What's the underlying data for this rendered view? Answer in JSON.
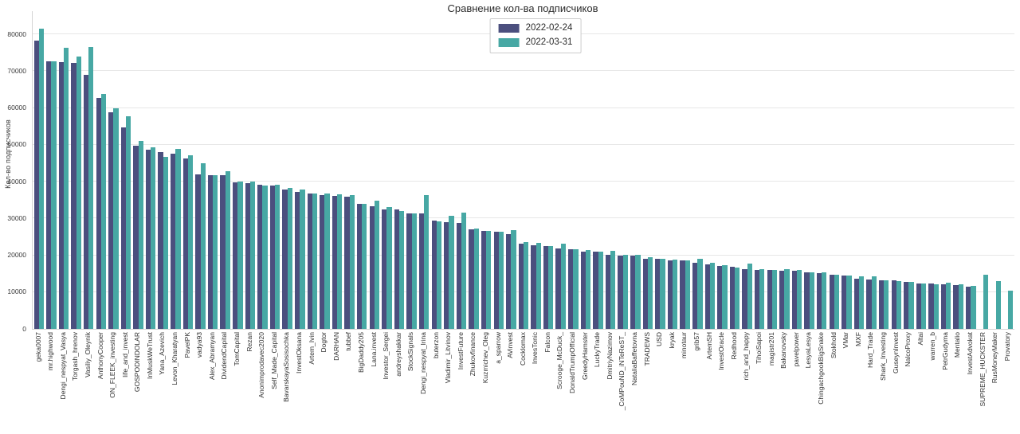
{
  "chart_data": {
    "type": "bar",
    "title": "Сравнение кол-ва подписчиков",
    "xlabel": "",
    "ylabel": "Кол-во подписчиков",
    "ylim": [
      0,
      85000
    ],
    "yticks": [
      0,
      10000,
      20000,
      30000,
      40000,
      50000,
      60000,
      70000,
      80000
    ],
    "grid": "horizontal",
    "legend_position": "top-center",
    "categories": [
      "geka0007",
      "mr.highwood",
      "Dengi_nespyat_Vasya",
      "Torgash_hrenov",
      "Vasiliy_Oleynik",
      "AnthonyCooper",
      "ON_FLEEK_investing",
      "life_and_invest",
      "GOSPODINDOLAR",
      "InMuskWeTrust",
      "Yana_Azevich",
      "Levon_Kharatyan",
      "PavelPK",
      "vadya93",
      "Alex_Abramyan",
      "DividendCapital",
      "TomCapital",
      "Rezan",
      "Anonimprodavec2020",
      "Self_Made_Capital",
      "BavarskayaSosisochka",
      "InvestOksana",
      "Artem_Ivin",
      "Dogtor",
      "DARHAN",
      "tubbef",
      "BigDaddy205",
      "Lana.invest",
      "Investor_Sergei",
      "andreyshakkar",
      "StockSignals",
      "Dengi_nespyat_Irina",
      "buterzon",
      "Vladimir_Litvinov",
      "InvestFuture",
      "Zhukovfinance",
      "Kuzmichev_Oleg",
      "a_sparrow",
      "AVinvest",
      "Cocklomax",
      "InvesTonic",
      "Falcon",
      "Scrooge_McDuck_",
      "DonaldTrumpOfficial",
      "GreedyHamster",
      "LuckyTrade",
      "DmitriyNazimov",
      "_CoMPouND_iNTeReST_",
      "NataliaBaffetovna",
      "TRADEWS",
      "USD",
      "kryak",
      "minotaur",
      "grib57",
      "ArtemSH",
      "InvestOracle",
      "Redhood",
      "rich_and_happy",
      "TihoiSapoi",
      "magistr201",
      "Bakanovsky",
      "pavelpower",
      "LesyaLesya",
      "ChingachgookBigSnake",
      "Stokhold",
      "VMar",
      "MXF",
      "Hard_Trade",
      "Shark_Investing",
      "GuseynInvest",
      "NalcoProxy",
      "Altai",
      "warren_b",
      "PetrGudyma",
      "Mentalio",
      "InvestAdvokat",
      "SUPREME_HUCKSTER",
      "RusMoneyMaker",
      "Provatory"
    ],
    "series": [
      {
        "name": "2022-02-24",
        "color": "#4b4f7e",
        "values": [
          78300,
          72600,
          72500,
          72200,
          69000,
          62700,
          58800,
          54700,
          49800,
          48700,
          48100,
          47500,
          46300,
          41900,
          41800,
          41800,
          39800,
          39600,
          39200,
          38900,
          37800,
          37100,
          36700,
          36400,
          36100,
          35800,
          34000,
          33200,
          32500,
          32400,
          31300,
          31300,
          29400,
          29000,
          28800,
          27000,
          26500,
          26400,
          25700,
          23100,
          22600,
          22500,
          21900,
          21600,
          21000,
          20900,
          20200,
          19900,
          19900,
          19100,
          19100,
          18600,
          18600,
          18000,
          17600,
          17100,
          16800,
          16300,
          16100,
          16000,
          15800,
          15700,
          15350,
          15100,
          14800,
          14550,
          13600,
          13400,
          13200,
          13200,
          12800,
          12300,
          12300,
          12100,
          11800,
          11500,
          null,
          null,
          null
        ]
      },
      {
        "name": "2022-03-31",
        "color": "#47a8a4",
        "values": [
          81600,
          72600,
          76400,
          73900,
          76500,
          63800,
          60000,
          57800,
          51000,
          49400,
          46700,
          48900,
          47100,
          44900,
          41800,
          42900,
          39900,
          40100,
          38900,
          39100,
          38200,
          37800,
          36700,
          36800,
          36600,
          36400,
          34000,
          34800,
          33100,
          32100,
          31300,
          36400,
          29200,
          30800,
          31500,
          27200,
          26500,
          26300,
          26900,
          23500,
          23300,
          22500,
          23100,
          21600,
          21400,
          20900,
          21300,
          20100,
          20200,
          19400,
          19100,
          18900,
          18600,
          19100,
          17900,
          17300,
          16700,
          17800,
          16300,
          16000,
          16200,
          16000,
          15350,
          15300,
          14800,
          14550,
          14300,
          14300,
          13200,
          13000,
          12700,
          12300,
          12200,
          12500,
          12200,
          11700,
          14700,
          13050,
          10400
        ]
      }
    ]
  }
}
